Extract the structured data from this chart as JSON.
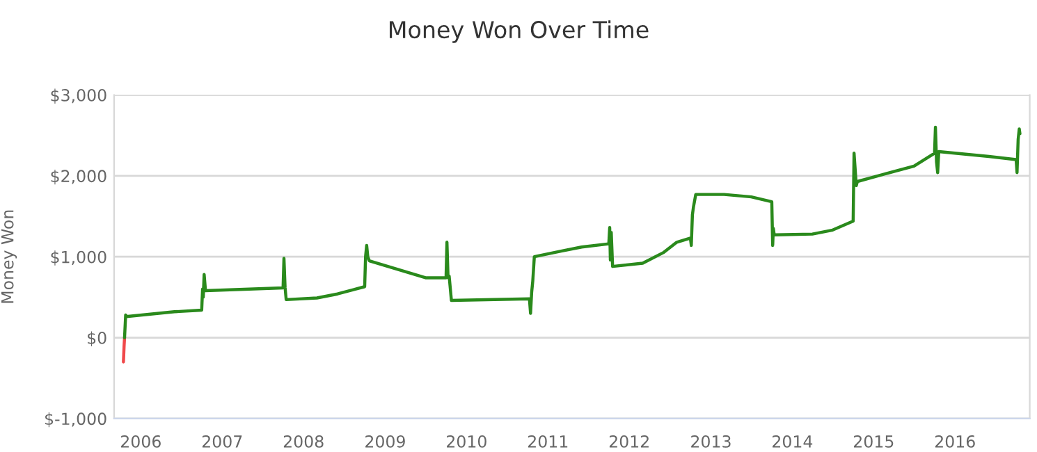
{
  "chart_data": {
    "type": "line",
    "title": "Money Won Over Time",
    "ylabel": "Money Won",
    "xlim": [
      "2005-09-03",
      "2016-12-01"
    ],
    "xticks": [
      {
        "value": "2006-01-01",
        "label": "2006"
      },
      {
        "value": "2007-01-01",
        "label": "2007"
      },
      {
        "value": "2008-01-01",
        "label": "2008"
      },
      {
        "value": "2009-01-01",
        "label": "2009"
      },
      {
        "value": "2010-01-01",
        "label": "2010"
      },
      {
        "value": "2011-01-01",
        "label": "2011"
      },
      {
        "value": "2012-01-01",
        "label": "2012"
      },
      {
        "value": "2013-01-01",
        "label": "2013"
      },
      {
        "value": "2014-01-01",
        "label": "2014"
      },
      {
        "value": "2015-01-01",
        "label": "2015"
      },
      {
        "value": "2016-01-01",
        "label": "2016"
      }
    ],
    "ylim": [
      -1000,
      3000
    ],
    "yticks": [
      {
        "value": -1000,
        "label": "$-1,000"
      },
      {
        "value": 0,
        "label": "$0"
      },
      {
        "value": 1000,
        "label": "$1,000"
      },
      {
        "value": 2000,
        "label": "$2,000"
      },
      {
        "value": 3000,
        "label": "$3,000"
      }
    ],
    "grid": "y",
    "marker": "none",
    "line_style": "solid",
    "series": [
      {
        "color": "#f0484a",
        "x": [
          "2005-10-15",
          "2005-10-18",
          "2005-10-20"
        ],
        "values": [
          -300,
          -100,
          0
        ]
      },
      {
        "color": "#2a8a1c",
        "x": [
          "2005-10-20",
          "2005-10-25",
          "2005-10-28",
          "2006-06-01",
          "2006-10-01",
          "2006-10-05",
          "2006-10-08",
          "2006-10-12",
          "2006-10-18",
          "2007-10-01",
          "2007-10-05",
          "2007-10-10",
          "2007-10-15",
          "2008-03-01",
          "2008-06-01",
          "2008-10-01",
          "2008-10-05",
          "2008-10-10",
          "2008-10-15",
          "2008-10-22",
          "2009-07-01",
          "2009-10-01",
          "2009-10-05",
          "2009-10-10",
          "2009-10-15",
          "2009-10-25",
          "2010-10-10",
          "2010-10-15",
          "2010-10-20",
          "2010-10-25",
          "2010-11-01",
          "2011-03-01",
          "2011-06-01",
          "2011-10-01",
          "2011-10-05",
          "2011-10-08",
          "2011-10-12",
          "2011-10-18",
          "2012-03-01",
          "2012-06-01",
          "2012-08-01",
          "2012-10-01",
          "2012-10-05",
          "2012-10-10",
          "2012-10-15",
          "2012-10-25",
          "2013-03-01",
          "2013-07-01",
          "2013-10-01",
          "2013-10-05",
          "2013-10-08",
          "2013-10-12",
          "2014-04-01",
          "2014-07-01",
          "2014-10-01",
          "2014-10-05",
          "2014-10-15",
          "2014-10-20",
          "2015-03-01",
          "2015-07-01",
          "2015-10-01",
          "2015-10-05",
          "2015-10-10",
          "2015-10-15",
          "2015-10-20",
          "2016-06-01",
          "2016-10-01",
          "2016-10-05",
          "2016-10-10",
          "2016-10-15",
          "2016-10-18"
        ],
        "values": [
          0,
          280,
          260,
          320,
          340,
          600,
          500,
          780,
          580,
          615,
          980,
          620,
          470,
          490,
          540,
          630,
          1000,
          1140,
          1000,
          950,
          740,
          740,
          1180,
          740,
          760,
          460,
          480,
          300,
          560,
          700,
          1000,
          1070,
          1120,
          1160,
          1360,
          960,
          1300,
          880,
          920,
          1050,
          1180,
          1230,
          1140,
          1520,
          1620,
          1770,
          1770,
          1740,
          1680,
          1140,
          1350,
          1270,
          1280,
          1330,
          1440,
          2280,
          1880,
          1930,
          2030,
          2120,
          2280,
          2600,
          2170,
          2040,
          2300,
          2240,
          2200,
          2040,
          2450,
          2580,
          2520
        ]
      }
    ]
  }
}
